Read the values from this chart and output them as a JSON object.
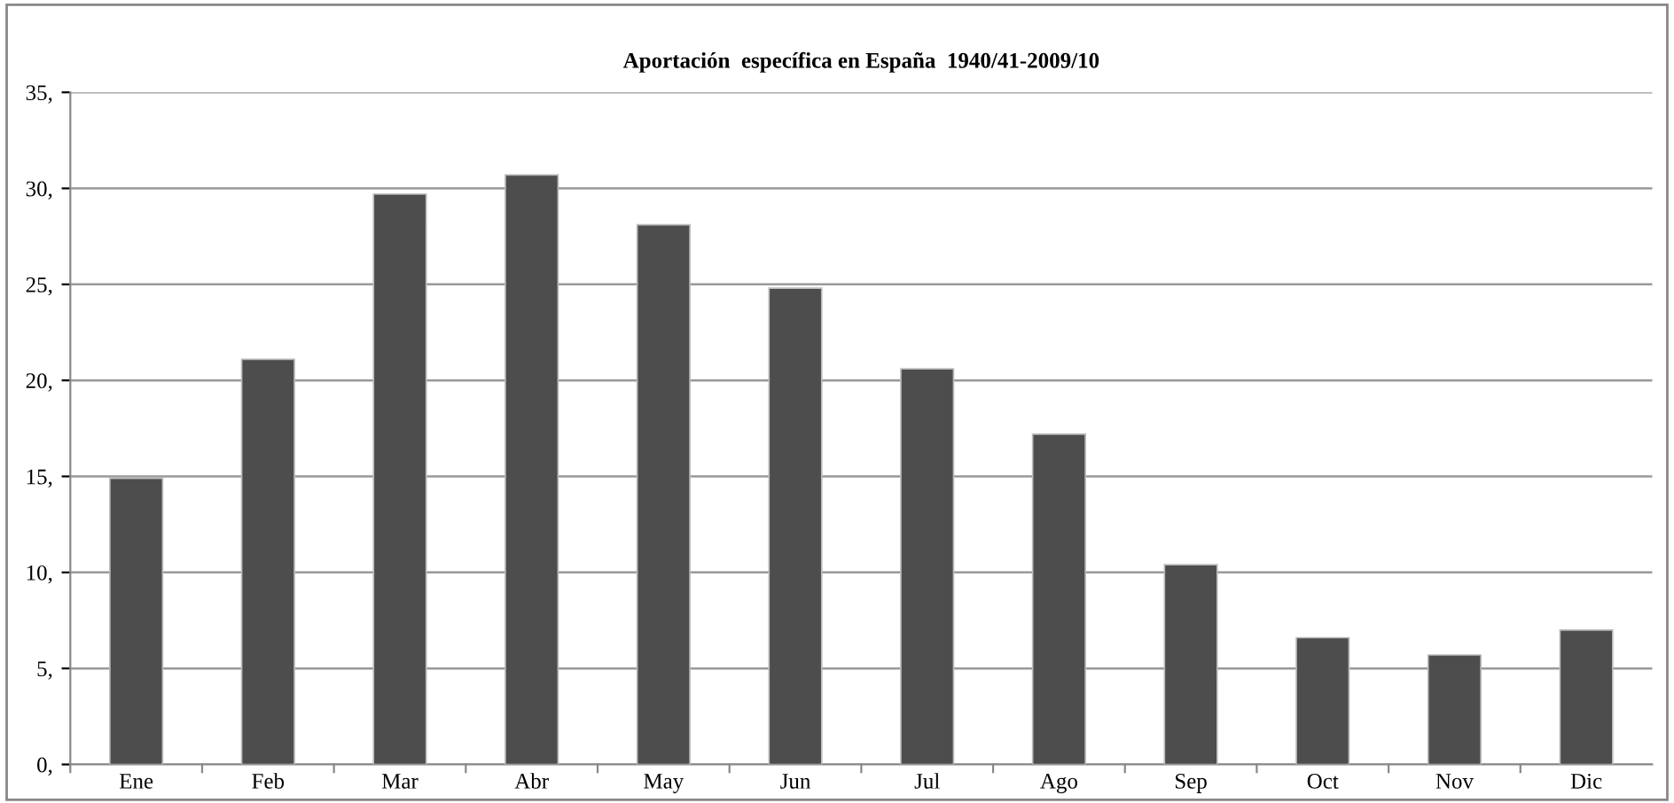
{
  "chart_data": {
    "type": "bar",
    "title": "Aportación  específica en España  1940/41-2009/10",
    "categories": [
      "Ene",
      "Feb",
      "Mar",
      "Abr",
      "May",
      "Jun",
      "Jul",
      "Ago",
      "Sep",
      "Oct",
      "Nov",
      "Dic"
    ],
    "values": [
      14.9,
      21.1,
      29.7,
      30.7,
      28.1,
      24.8,
      20.6,
      17.2,
      10.4,
      6.6,
      5.7,
      7.0
    ],
    "color": "#4d4d4d",
    "ylim": [
      0,
      35
    ],
    "yticks": [
      {
        "value": 0,
        "label": "0,"
      },
      {
        "value": 5,
        "label": "5,"
      },
      {
        "value": 10,
        "label": "10,"
      },
      {
        "value": 15,
        "label": "15,"
      },
      {
        "value": 20,
        "label": "20,"
      },
      {
        "value": 25,
        "label": "25,"
      },
      {
        "value": 30,
        "label": "30,"
      },
      {
        "value": 35,
        "label": "35,"
      }
    ],
    "grid": "y",
    "legend": false
  }
}
